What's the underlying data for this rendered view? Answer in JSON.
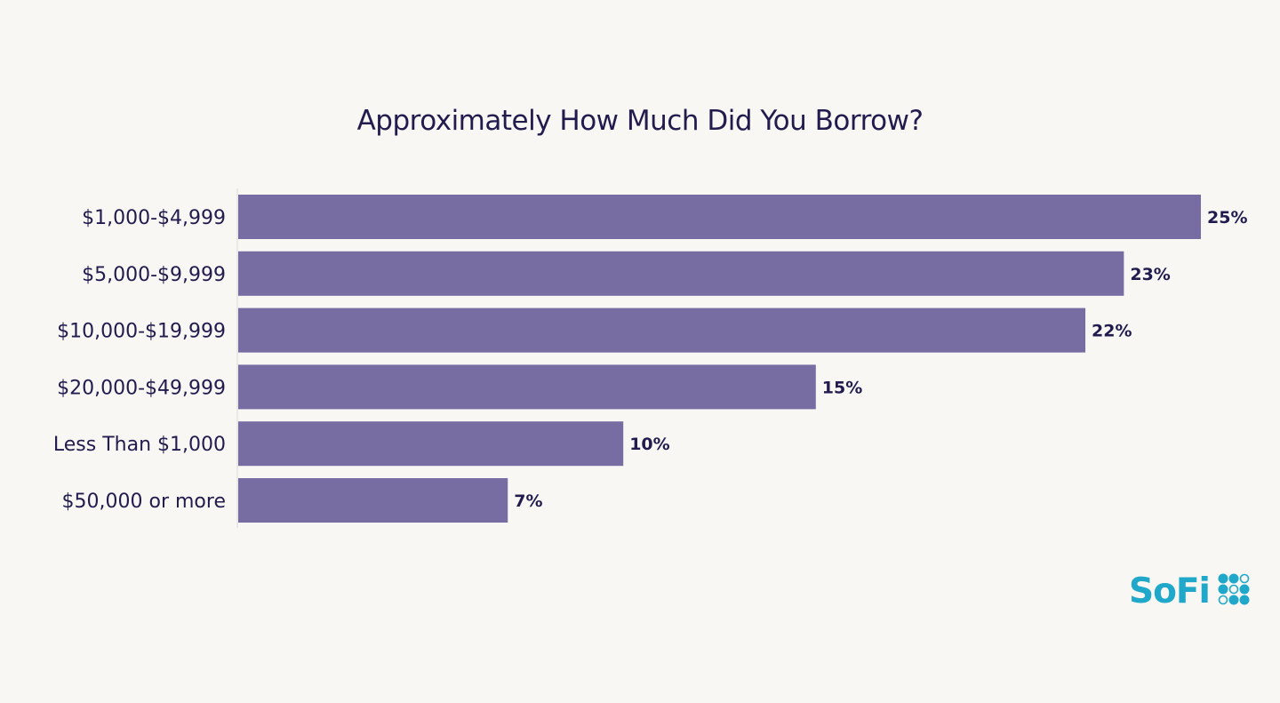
{
  "chart_data": {
    "type": "bar",
    "orientation": "horizontal",
    "title": "Approximately How Much Did You Borrow?",
    "categories": [
      "$1,000-$4,999",
      "$5,000-$9,999",
      "$10,000-$19,999",
      "$20,000-$49,999",
      "Less Than $1,000",
      "$50,000 or more"
    ],
    "values": [
      25,
      23,
      22,
      15,
      10,
      7
    ],
    "value_labels": [
      "25%",
      "23%",
      "22%",
      "15%",
      "10%",
      "7%"
    ],
    "unit": "%",
    "xlim": [
      0,
      25
    ],
    "grid": false,
    "bar_color": "#776da3",
    "label_color": "#221c4e"
  },
  "brand": {
    "logo_text": "SoFi",
    "color": "#1fa8c9"
  }
}
